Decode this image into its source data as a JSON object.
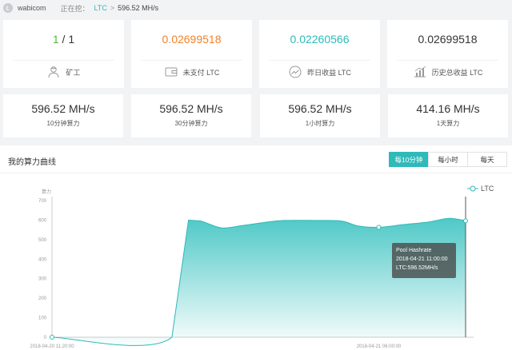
{
  "topbar": {
    "logo_glyph": "Ł",
    "brand": "wabicom",
    "mining_label": "正在挖：",
    "coin": "LTC",
    "separator": ">",
    "hashrate": "596.52 MH/s"
  },
  "stats": [
    {
      "value_a": "1",
      "value_b": " / 1",
      "label": "矿工",
      "icon": "worker-icon",
      "color_a": "#53b835",
      "color_b": "#333333"
    },
    {
      "value_a": "0.02699518",
      "value_b": "",
      "label": "未支付 LTC",
      "icon": "wallet-icon",
      "color_a": "#f5822a",
      "color_b": "#333333"
    },
    {
      "value_a": "0.02260566",
      "value_b": "",
      "label": "昨日收益 LTC",
      "icon": "trend-icon",
      "color_a": "#2fb9b9",
      "color_b": "#333333"
    },
    {
      "value_a": "0.02699518",
      "value_b": "",
      "label": "历史总收益 LTC",
      "icon": "bar-chart-icon",
      "color_a": "#333333",
      "color_b": "#333333"
    }
  ],
  "hashrates": [
    {
      "value": "596.52 MH/s",
      "label": "10分钟算力"
    },
    {
      "value": "596.52 MH/s",
      "label": "30分钟算力"
    },
    {
      "value": "596.52 MH/s",
      "label": "1小时算力"
    },
    {
      "value": "414.16 MH/s",
      "label": "1天算力"
    }
  ],
  "chart_section": {
    "title": "我的算力曲线",
    "tabs": [
      {
        "label": "每10分钟",
        "active": true
      },
      {
        "label": "每小时",
        "active": false
      },
      {
        "label": "每天",
        "active": false
      }
    ]
  },
  "tooltip": {
    "title": "Pool Hashrate",
    "time": "2018-04-21 11:00:00",
    "value": "LTC:596.52MH/s"
  },
  "chart_data": {
    "type": "area",
    "ylabel": "算力",
    "ylim": [
      0,
      700
    ],
    "yticks": [
      0,
      100,
      200,
      300,
      400,
      500,
      600,
      700
    ],
    "series": [
      {
        "name": "LTC",
        "color": "#2fb9b9",
        "points": [
          {
            "t": 0.0,
            "v": 0
          },
          {
            "t": 0.29,
            "v": 0
          },
          {
            "t": 0.33,
            "v": 600
          },
          {
            "t": 0.36,
            "v": 595
          },
          {
            "t": 0.41,
            "v": 560
          },
          {
            "t": 0.46,
            "v": 572
          },
          {
            "t": 0.52,
            "v": 590
          },
          {
            "t": 0.56,
            "v": 598
          },
          {
            "t": 0.64,
            "v": 598
          },
          {
            "t": 0.7,
            "v": 595
          },
          {
            "t": 0.74,
            "v": 570
          },
          {
            "t": 0.79,
            "v": 563
          },
          {
            "t": 0.85,
            "v": 577
          },
          {
            "t": 0.91,
            "v": 590
          },
          {
            "t": 0.96,
            "v": 609
          },
          {
            "t": 1.0,
            "v": 596.52
          }
        ]
      }
    ],
    "x_labels": [
      "2018-04-20 11:20:00",
      "2018-04-21 06:00:00"
    ],
    "x_label_positions": [
      0.0,
      0.79
    ],
    "marker_t": [
      0.0,
      0.79,
      1.0
    ],
    "grid": false,
    "legend": "top-right"
  },
  "colors": {
    "accent": "#2fb9b9",
    "green": "#53b835",
    "orange": "#f5822a"
  }
}
